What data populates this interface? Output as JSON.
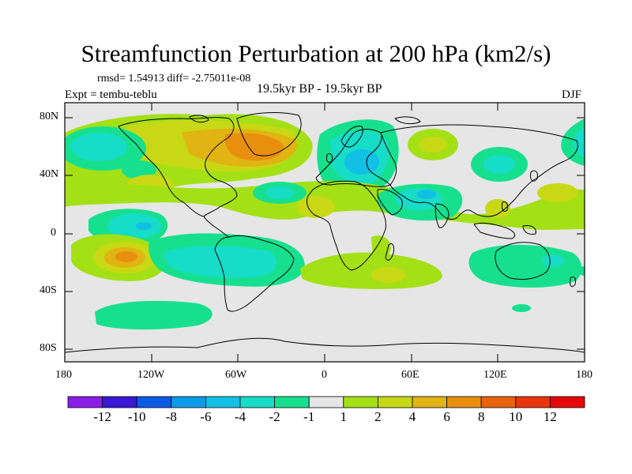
{
  "title": "Streamfunction Perturbation at 200 hPa (km2/s)",
  "stats": "rmsd= 1.54913 diff= -2.75011e-08",
  "experiment": "Expt = tembu-teblu",
  "period": "19.5kyr BP - 19.5kyr BP",
  "season": "DJF",
  "colors": {
    "background_field": "#e6e6e6",
    "levels": [
      "#8a1ee6",
      "#3a18d6",
      "#0a5ae6",
      "#0a9ae6",
      "#12c0e6",
      "#16dcc8",
      "#16e08e",
      "#e6e6e6",
      "#a4e016",
      "#c8d814",
      "#e0b412",
      "#e8900e",
      "#e8640c",
      "#e8360a",
      "#e60808"
    ]
  },
  "latitude_ticks": [
    "80N",
    "40N",
    "0",
    "40S",
    "80S"
  ],
  "longitude_ticks": [
    "180",
    "120W",
    "60W",
    "0",
    "60E",
    "120E",
    "180"
  ],
  "colorbar_labels": [
    "-12",
    "-10",
    "-8",
    "-6",
    "-4",
    "-2",
    "-1",
    "1",
    "2",
    "4",
    "6",
    "8",
    "10",
    "12"
  ],
  "field_features": [
    {
      "lon": -105,
      "lat": 62,
      "level": 9
    },
    {
      "lon": -40,
      "lat": 55,
      "level": 11
    },
    {
      "lon": 50,
      "lat": 53,
      "level": 4
    },
    {
      "lon": -150,
      "lat": 10,
      "level": 5
    },
    {
      "lon": -135,
      "lat": -20,
      "level": 11
    },
    {
      "lon": 30,
      "lat": -30,
      "level": 10
    },
    {
      "lon": 60,
      "lat": 25,
      "level": 5
    }
  ]
}
